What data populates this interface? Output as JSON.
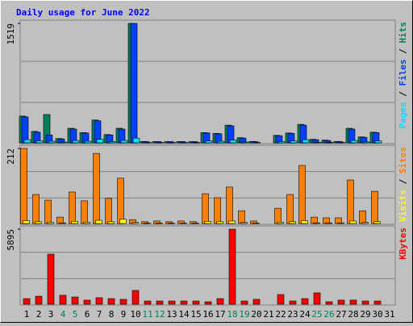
{
  "chart_data": [
    {
      "type": "bar",
      "title": "Daily usage for June 2022",
      "ylim": [
        0,
        1519
      ],
      "yticks": [
        1519
      ],
      "legend_separator": " / ",
      "series": [
        {
          "name": "Hits",
          "color": "#00805c",
          "values": [
            340,
            145,
            360,
            55,
            185,
            130,
            290,
            105,
            185,
            1519,
            18,
            16,
            15,
            16,
            15,
            130,
            120,
            225,
            65,
            18,
            0,
            95,
            125,
            235,
            45,
            35,
            18,
            185,
            75,
            135,
            null
          ]
        },
        {
          "name": "Files",
          "color": "#0040ff",
          "values": [
            330,
            135,
            100,
            50,
            175,
            125,
            280,
            100,
            175,
            1519,
            15,
            15,
            15,
            15,
            15,
            125,
            115,
            215,
            60,
            15,
            0,
            90,
            120,
            225,
            40,
            30,
            15,
            175,
            70,
            130,
            null
          ]
        },
        {
          "name": "Pages",
          "color": "#00e0ff",
          "values": [
            40,
            25,
            20,
            10,
            30,
            20,
            45,
            15,
            30,
            60,
            4,
            4,
            4,
            4,
            4,
            25,
            20,
            35,
            10,
            4,
            0,
            15,
            25,
            40,
            8,
            6,
            4,
            30,
            12,
            25,
            null
          ]
        }
      ]
    },
    {
      "type": "bar",
      "ylim": [
        0,
        212
      ],
      "yticks": [
        212
      ],
      "legend_separator": " / ",
      "series": [
        {
          "name": "Sites",
          "color": "#ff8000",
          "values": [
            212,
            82,
            66,
            18,
            89,
            64,
            198,
            71,
            128,
            11,
            5,
            7,
            5,
            7,
            5,
            84,
            73,
            103,
            36,
            7,
            0,
            43,
            82,
            164,
            18,
            16,
            16,
            123,
            36,
            91,
            null
          ]
        },
        {
          "name": "Visits",
          "color": "#ffff00",
          "values": [
            8,
            5,
            4,
            2,
            6,
            4,
            9,
            5,
            12,
            3,
            1,
            1,
            1,
            1,
            1,
            6,
            5,
            7,
            3,
            1,
            0,
            4,
            5,
            8,
            2,
            2,
            2,
            7,
            3,
            5,
            null
          ]
        }
      ]
    },
    {
      "type": "bar",
      "ylim": [
        0,
        5895
      ],
      "yticks": [
        5895
      ],
      "categories": [
        "1",
        "2",
        "3",
        "4",
        "5",
        "6",
        "7",
        "8",
        "9",
        "10",
        "11",
        "12",
        "13",
        "14",
        "15",
        "16",
        "17",
        "18",
        "19",
        "20",
        "21",
        "22",
        "23",
        "24",
        "25",
        "26",
        "27",
        "28",
        "29",
        "30",
        "31"
      ],
      "category_colors": [
        "#000000",
        "#000000",
        "#000000",
        "#00805c",
        "#00805c",
        "#000000",
        "#000000",
        "#000000",
        "#000000",
        "#000000",
        "#00805c",
        "#00805c",
        "#000000",
        "#000000",
        "#000000",
        "#000000",
        "#000000",
        "#00805c",
        "#00805c",
        "#000000",
        "#000000",
        "#000000",
        "#000000",
        "#000000",
        "#00805c",
        "#00805c",
        "#000000",
        "#000000",
        "#000000",
        "#000000",
        "#000000"
      ],
      "series": [
        {
          "name": "KBytes",
          "color": "#ff0000",
          "values": [
            440,
            630,
            3930,
            700,
            570,
            320,
            510,
            440,
            380,
            1080,
            250,
            250,
            250,
            250,
            250,
            190,
            440,
            5895,
            250,
            380,
            0,
            760,
            250,
            440,
            890,
            190,
            320,
            320,
            250,
            250,
            null
          ]
        }
      ]
    }
  ]
}
